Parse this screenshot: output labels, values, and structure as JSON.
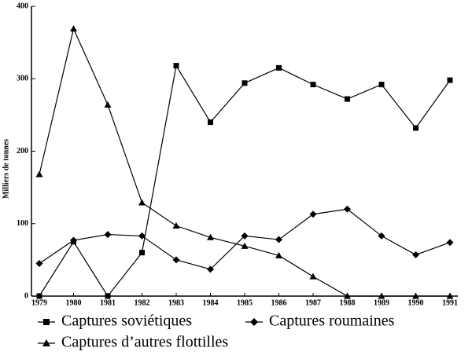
{
  "chart_data": {
    "type": "line",
    "y_label": "Milliers de tonnes",
    "categories": [
      "1979",
      "1980",
      "1981",
      "1982",
      "1983",
      "1984",
      "1985",
      "1986",
      "1987",
      "1988",
      "1989",
      "1990",
      "1991"
    ],
    "series": [
      {
        "name": "Captures soviétiques",
        "color": "#000000",
        "marker": "square",
        "values": [
          0,
          75,
          0,
          60,
          318,
          240,
          294,
          315,
          292,
          272,
          292,
          232,
          298
        ]
      },
      {
        "name": "Captures roumaines",
        "color": "#000000",
        "marker": "diamond",
        "values": [
          45,
          77,
          85,
          83,
          50,
          37,
          83,
          78,
          113,
          120,
          83,
          57,
          74
        ]
      },
      {
        "name": "Captures d’autres flottilles",
        "color": "#000000",
        "marker": "triangle",
        "values": [
          168,
          369,
          264,
          129,
          97,
          81,
          69,
          56,
          27,
          0,
          0,
          0,
          0
        ]
      }
    ],
    "ylim": [
      0,
      400
    ],
    "yticks": [
      0,
      100,
      200,
      300,
      400
    ],
    "grid": false,
    "legend": "bottom"
  }
}
